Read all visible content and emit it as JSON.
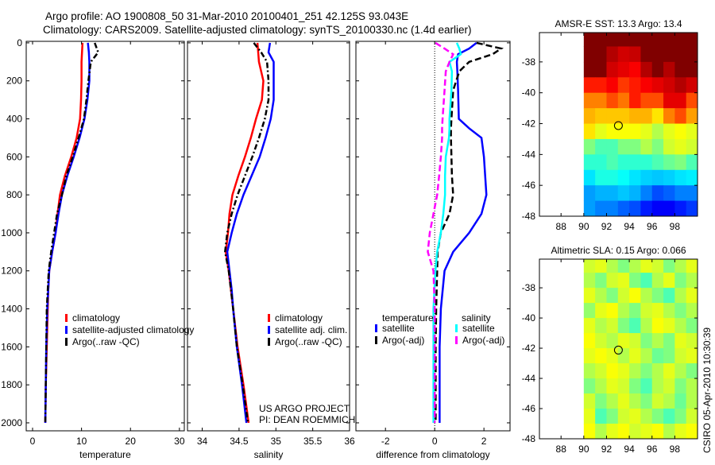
{
  "title": {
    "line1": "Argo profile: AO 1900808_50 31-Mar-2010 20100401_251 42.125S 93.043E",
    "line2": "Climatology: CARS2009. Satellite-adjusted climatology: synTS_20100330.nc (1.4d earlier)"
  },
  "footer": {
    "credit": "CSIRO 05-Apr-2010 10:30:39",
    "project_line1": "US ARGO PROJECT",
    "project_line2": "PI: DEAN ROEMMICH"
  },
  "colors": {
    "red": "#ff0000",
    "blue": "#0000ff",
    "black": "#000000",
    "cyan": "#00ffff",
    "magenta": "#ff00ff"
  },
  "chart_data": [
    {
      "type": "line",
      "id": "temperature",
      "xlabel": "temperature",
      "xlim": [
        -1.3,
        31
      ],
      "ylim": [
        2042,
        -8
      ],
      "xticks": [
        0,
        10,
        20,
        30
      ],
      "yticks": [
        0,
        200,
        400,
        600,
        800,
        1000,
        1200,
        1400,
        1600,
        1800,
        2000
      ],
      "depth": [
        0,
        50,
        100,
        200,
        300,
        400,
        500,
        600,
        700,
        800,
        900,
        1000,
        1100,
        1200,
        1300,
        1400,
        1600,
        1800,
        2000
      ],
      "legend": [
        "climatology",
        "satellite-adjusted climatology",
        "Argo(..raw -QC)"
      ],
      "series": [
        {
          "name": "climatology",
          "color": "red",
          "dash": "",
          "values": [
            10.2,
            10.1,
            10.0,
            10.0,
            9.9,
            9.7,
            9.0,
            7.9,
            6.6,
            5.6,
            5.1,
            4.7,
            4.0,
            3.4,
            3.2,
            3.1,
            2.9,
            2.7,
            2.6
          ]
        },
        {
          "name": "satellite-adjusted climatology",
          "color": "blue",
          "dash": "",
          "values": [
            11.3,
            11.5,
            11.6,
            11.6,
            11.2,
            10.6,
            9.6,
            8.4,
            7.1,
            6.0,
            5.3,
            4.7,
            4.0,
            3.4,
            3.2,
            3.0,
            2.8,
            2.7,
            2.6
          ]
        },
        {
          "name": "Argo(..raw -QC)",
          "color": "black",
          "dash": "7 3 2 3",
          "values": [
            12.7,
            13.4,
            11.9,
            11.4,
            11.0,
            10.5,
            9.4,
            8.2,
            6.9,
            6.0,
            5.0,
            4.4,
            3.8,
            3.3,
            3.1,
            2.9,
            2.8,
            2.7,
            2.6
          ]
        }
      ]
    },
    {
      "type": "line",
      "id": "salinity",
      "xlabel": "salinity",
      "xlim": [
        33.8,
        36.0
      ],
      "ylim": [
        2042,
        -8
      ],
      "xticks": [
        34,
        34.5,
        35,
        35.5,
        36
      ],
      "depth": [
        0,
        50,
        100,
        200,
        300,
        400,
        500,
        600,
        700,
        800,
        900,
        1000,
        1100,
        1200,
        1300,
        1400,
        1600,
        1800,
        2000
      ],
      "legend": [
        "climatology",
        "satellite adj. clim.",
        "Argo(..raw -QC)"
      ],
      "series": [
        {
          "name": "climatology",
          "color": "red",
          "dash": "",
          "values": [
            34.75,
            34.76,
            34.77,
            34.83,
            34.81,
            34.73,
            34.66,
            34.58,
            34.49,
            34.41,
            34.37,
            34.35,
            34.32,
            34.36,
            34.39,
            34.42,
            34.48,
            34.56,
            34.63
          ]
        },
        {
          "name": "satellite adj. clim.",
          "color": "blue",
          "dash": "",
          "values": [
            34.92,
            34.9,
            34.97,
            34.97,
            34.97,
            34.93,
            34.86,
            34.78,
            34.67,
            34.56,
            34.47,
            34.4,
            34.34,
            34.37,
            34.4,
            34.42,
            34.47,
            34.54,
            34.6
          ]
        },
        {
          "name": "Argo(..raw -QC)",
          "color": "black",
          "dash": "7 3 2 3",
          "values": [
            34.7,
            34.8,
            34.88,
            34.9,
            34.9,
            34.85,
            34.77,
            34.68,
            34.58,
            34.48,
            34.4,
            34.34,
            34.31,
            34.36,
            34.39,
            34.42,
            34.47,
            34.55,
            34.62
          ]
        }
      ]
    },
    {
      "type": "line",
      "id": "difference",
      "xlabel": "difference from climatology",
      "xlim": [
        -3.2,
        3.06
      ],
      "ylim": [
        2042,
        -8
      ],
      "xticks": [
        -2,
        0,
        2
      ],
      "zero_line": true,
      "depth": [
        0,
        30,
        60,
        100,
        150,
        250,
        400,
        450,
        500,
        600,
        700,
        800,
        900,
        1000,
        1100,
        1200,
        1400,
        1600,
        2000
      ],
      "legend_headers": [
        "temperature",
        "salinity"
      ],
      "legend": [
        "satellite",
        "Argo(-adj)",
        "satellite",
        "Argo(-adj)"
      ],
      "series": [
        {
          "name": "temperature satellite",
          "color": "blue",
          "dash": "",
          "values": [
            1.7,
            1.4,
            0.95,
            0.9,
            0.92,
            0.95,
            0.98,
            1.4,
            1.9,
            2.0,
            2.05,
            2.1,
            1.9,
            1.4,
            0.75,
            0.4,
            0.25,
            0.2,
            0.2
          ]
        },
        {
          "name": "temperature Argo(-adj)",
          "color": "black",
          "dash": "8 4",
          "values": [
            1.7,
            2.7,
            2.35,
            1.4,
            1.0,
            0.75,
            0.68,
            0.66,
            0.66,
            0.68,
            0.7,
            0.75,
            0.6,
            0.25,
            0.12,
            0.1,
            0.06,
            0.04,
            0.04
          ]
        },
        {
          "name": "salinity satellite",
          "color": "cyan",
          "dash": "",
          "values": [
            0.9,
            1.0,
            1.06,
            0.6,
            0.7,
            0.68,
            0.6,
            0.6,
            0.58,
            0.45,
            0.42,
            0.42,
            0.35,
            0.25,
            0.1,
            0.03,
            -0.05,
            -0.05,
            -0.05
          ]
        },
        {
          "name": "salinity Argo(-adj)",
          "color": "magenta",
          "dash": "8 4",
          "values": [
            0.03,
            0.4,
            0.75,
            0.6,
            0.45,
            0.4,
            0.32,
            0.3,
            0.3,
            0.25,
            0.18,
            0.1,
            -0.05,
            -0.2,
            -0.28,
            -0.05,
            0.0,
            0.0,
            0.0
          ]
        }
      ]
    },
    {
      "type": "heatmap",
      "id": "sst",
      "title": "AMSR-E SST: 13.3 Argo: 13.4",
      "xlim": [
        86.1,
        100
      ],
      "ylim": [
        -48,
        -36.1
      ],
      "xticks": [
        88,
        90,
        92,
        94,
        96,
        98
      ],
      "yticks": [
        -38,
        -40,
        -42,
        -44,
        -46,
        -48
      ],
      "grid_lon0": 90,
      "grid_lat0": -36,
      "grid_step": 1,
      "marker": {
        "lon": 93.043,
        "lat": -42.125
      },
      "grid": [
        [
          1,
          1,
          1,
          1,
          1,
          1,
          1,
          1,
          1,
          1
        ],
        [
          1,
          1,
          0.95,
          0.92,
          0.93,
          1,
          1,
          1,
          1,
          1
        ],
        [
          1,
          1,
          0.92,
          0.9,
          0.88,
          0.95,
          1,
          0.95,
          1,
          1
        ],
        [
          0.85,
          0.85,
          0.88,
          0.82,
          0.85,
          0.88,
          0.9,
          0.92,
          0.95,
          0.92
        ],
        [
          0.75,
          0.75,
          0.8,
          0.76,
          0.85,
          0.8,
          0.8,
          0.9,
          0.9,
          0.8
        ],
        [
          0.7,
          0.68,
          0.68,
          0.68,
          0.7,
          0.7,
          0.65,
          0.75,
          0.8,
          0.72
        ],
        [
          0.65,
          0.6,
          0.62,
          0.62,
          0.62,
          0.6,
          0.55,
          0.6,
          0.62,
          0.6
        ],
        [
          0.5,
          0.45,
          0.45,
          0.5,
          0.5,
          0.55,
          0.5,
          0.58,
          0.6,
          0.58
        ],
        [
          0.42,
          0.42,
          0.45,
          0.42,
          0.42,
          0.42,
          0.45,
          0.48,
          0.5,
          0.45
        ],
        [
          0.35,
          0.4,
          0.4,
          0.38,
          0.35,
          0.33,
          0.32,
          0.33,
          0.35,
          0.36
        ],
        [
          0.28,
          0.3,
          0.3,
          0.32,
          0.3,
          0.25,
          0.2,
          0.22,
          0.25,
          0.25
        ],
        [
          0.28,
          0.25,
          0.25,
          0.22,
          0.2,
          0.15,
          0.12,
          0.12,
          0.15,
          0.18
        ]
      ]
    },
    {
      "type": "heatmap",
      "id": "sla",
      "title": "Altimetric SLA: 0.15 Argo: 0.066",
      "xlim": [
        86.1,
        100
      ],
      "ylim": [
        -48,
        -36.1
      ],
      "xticks": [
        88,
        90,
        92,
        94,
        96,
        98
      ],
      "yticks": [
        -38,
        -40,
        -42,
        -44,
        -46,
        -48
      ],
      "grid_lon0": 90,
      "grid_lat0": -36,
      "grid_step": 1,
      "marker": {
        "lon": 93.043,
        "lat": -42.125
      },
      "grid": [
        [
          0.58,
          0.6,
          0.55,
          0.5,
          0.55,
          0.6,
          0.58,
          0.5,
          0.55,
          0.6
        ],
        [
          0.55,
          0.5,
          0.58,
          0.6,
          0.5,
          0.45,
          0.55,
          0.6,
          0.5,
          0.55
        ],
        [
          0.6,
          0.55,
          0.5,
          0.58,
          0.62,
          0.55,
          0.5,
          0.45,
          0.55,
          0.6
        ],
        [
          0.52,
          0.6,
          0.62,
          0.55,
          0.5,
          0.58,
          0.6,
          0.55,
          0.5,
          0.55
        ],
        [
          0.6,
          0.55,
          0.58,
          0.5,
          0.45,
          0.55,
          0.62,
          0.6,
          0.55,
          0.5
        ],
        [
          0.62,
          0.58,
          0.55,
          0.6,
          0.58,
          0.5,
          0.55,
          0.5,
          0.6,
          0.58
        ],
        [
          0.6,
          0.62,
          0.6,
          0.55,
          0.6,
          0.55,
          0.48,
          0.5,
          0.58,
          0.6
        ],
        [
          0.55,
          0.58,
          0.62,
          0.6,
          0.55,
          0.5,
          0.55,
          0.6,
          0.55,
          0.5
        ],
        [
          0.5,
          0.55,
          0.6,
          0.58,
          0.5,
          0.45,
          0.55,
          0.58,
          0.5,
          0.55
        ],
        [
          0.58,
          0.5,
          0.55,
          0.6,
          0.55,
          0.5,
          0.58,
          0.55,
          0.48,
          0.55
        ],
        [
          0.6,
          0.45,
          0.5,
          0.58,
          0.6,
          0.55,
          0.5,
          0.45,
          0.5,
          0.58
        ],
        [
          0.62,
          0.55,
          0.6,
          0.62,
          0.58,
          0.6,
          0.62,
          0.55,
          0.6,
          0.62
        ]
      ]
    }
  ]
}
